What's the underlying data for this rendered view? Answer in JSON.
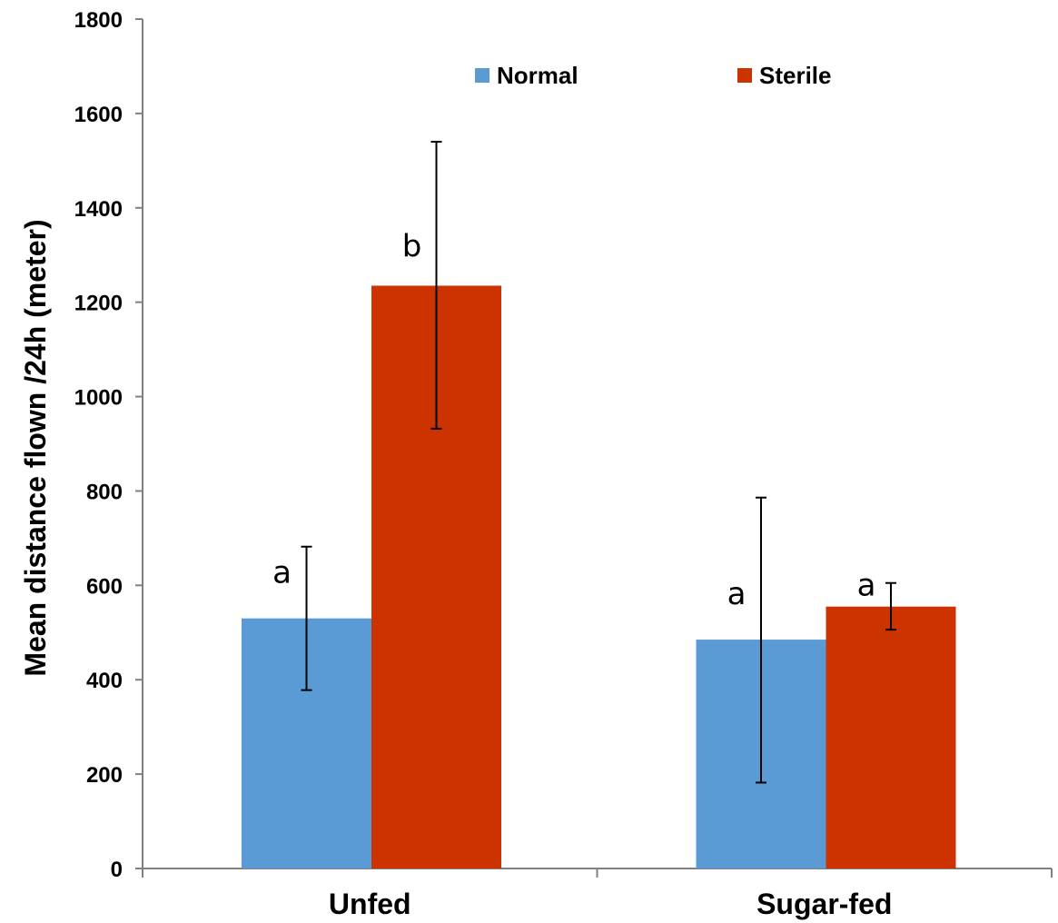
{
  "chart_data": {
    "type": "bar",
    "title": "",
    "xlabel": "",
    "ylabel": "Mean distance flown /24h (meter)",
    "ylim": [
      0,
      1800
    ],
    "yticks": [
      0,
      200,
      400,
      600,
      800,
      1000,
      1200,
      1400,
      1600,
      1800
    ],
    "categories": [
      "Unfed",
      "Sugar-fed"
    ],
    "series": [
      {
        "name": "Normal",
        "color": "#5b9bd5",
        "values": [
          530,
          485
        ],
        "error_low": [
          378,
          182
        ],
        "error_high": [
          682,
          786
        ],
        "labels": [
          "a",
          "a"
        ]
      },
      {
        "name": "Sterile",
        "color": "#cc3300",
        "values": [
          1235,
          555
        ],
        "error_low": [
          932,
          506
        ],
        "error_high": [
          1540,
          605
        ],
        "labels": [
          "b",
          "a"
        ]
      }
    ],
    "grid": false,
    "legend": "top-center"
  }
}
